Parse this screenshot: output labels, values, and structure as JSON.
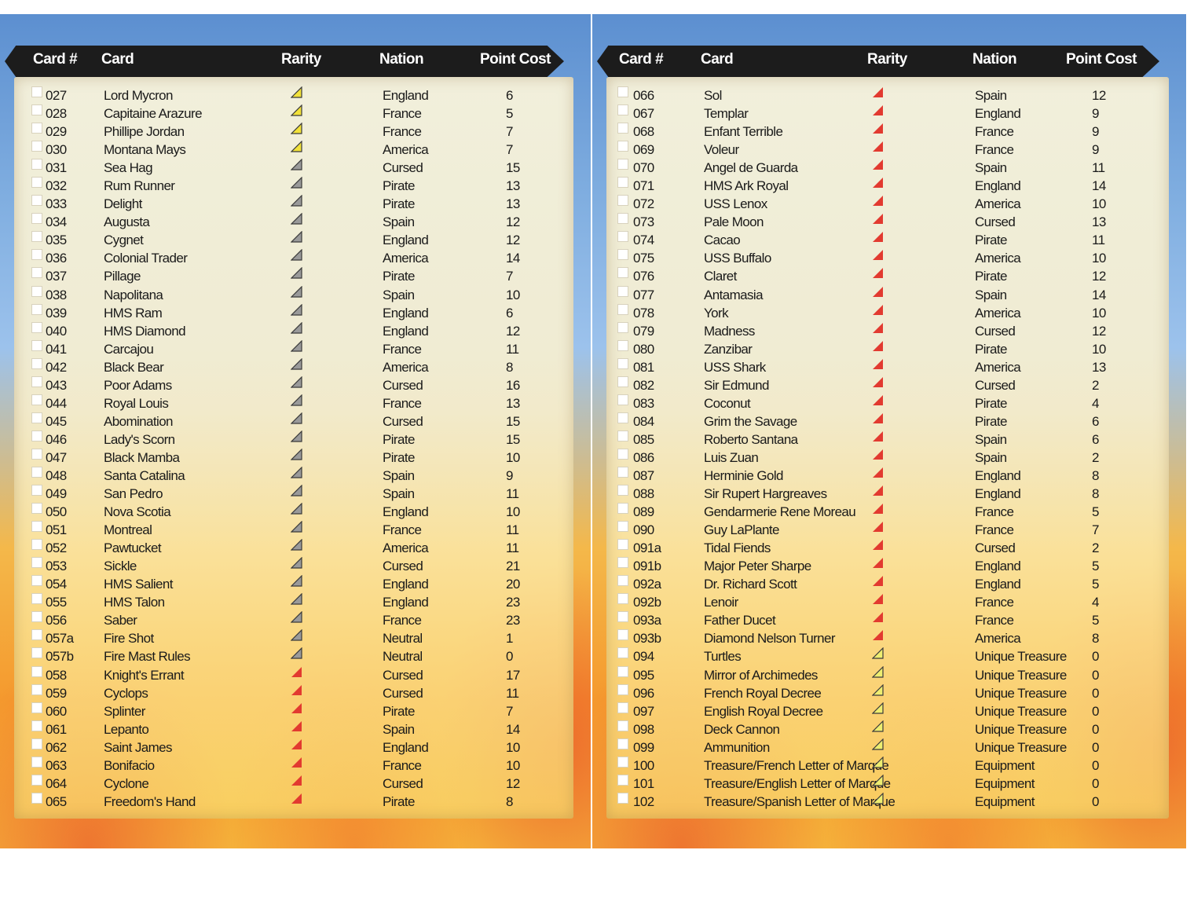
{
  "colors": {
    "rare": "#e23a30",
    "common": "#9a9a9a",
    "uncommon": "#f2e23a",
    "treasure": "#eeee70"
  },
  "headers": {
    "card_num": "Card #",
    "card": "Card",
    "rarity": "Rarity",
    "nation": "Nation",
    "point_cost": "Point Cost"
  },
  "left": {
    "rows": [
      {
        "num": "027",
        "name": "Lord Mycron",
        "rarity": "uncommon",
        "nation": "England",
        "cost": "6"
      },
      {
        "num": "028",
        "name": "Capitaine Arazure",
        "rarity": "uncommon",
        "nation": "France",
        "cost": "5"
      },
      {
        "num": "029",
        "name": "Phillipe Jordan",
        "rarity": "uncommon",
        "nation": "France",
        "cost": "7"
      },
      {
        "num": "030",
        "name": "Montana Mays",
        "rarity": "uncommon",
        "nation": "America",
        "cost": "7"
      },
      {
        "num": "031",
        "name": "Sea Hag",
        "rarity": "common",
        "nation": "Cursed",
        "cost": "15"
      },
      {
        "num": "032",
        "name": "Rum Runner",
        "rarity": "common",
        "nation": "Pirate",
        "cost": "13"
      },
      {
        "num": "033",
        "name": "Delight",
        "rarity": "common",
        "nation": "Pirate",
        "cost": "13"
      },
      {
        "num": "034",
        "name": "Augusta",
        "rarity": "common",
        "nation": "Spain",
        "cost": "12"
      },
      {
        "num": "035",
        "name": "Cygnet",
        "rarity": "common",
        "nation": "England",
        "cost": "12"
      },
      {
        "num": "036",
        "name": "Colonial Trader",
        "rarity": "common",
        "nation": "America",
        "cost": "14"
      },
      {
        "num": "037",
        "name": "Pillage",
        "rarity": "common",
        "nation": "Pirate",
        "cost": "7"
      },
      {
        "num": "038",
        "name": "Napolitana",
        "rarity": "common",
        "nation": "Spain",
        "cost": "10"
      },
      {
        "num": "039",
        "name": "HMS Ram",
        "rarity": "common",
        "nation": "England",
        "cost": "6"
      },
      {
        "num": "040",
        "name": "HMS Diamond",
        "rarity": "common",
        "nation": "England",
        "cost": "12"
      },
      {
        "num": "041",
        "name": "Carcajou",
        "rarity": "common",
        "nation": "France",
        "cost": "11"
      },
      {
        "num": "042",
        "name": "Black Bear",
        "rarity": "common",
        "nation": "America",
        "cost": "8"
      },
      {
        "num": "043",
        "name": "Poor Adams",
        "rarity": "common",
        "nation": "Cursed",
        "cost": "16"
      },
      {
        "num": "044",
        "name": "Royal Louis",
        "rarity": "common",
        "nation": "France",
        "cost": "13"
      },
      {
        "num": "045",
        "name": "Abomination",
        "rarity": "common",
        "nation": "Cursed",
        "cost": "15"
      },
      {
        "num": "046",
        "name": "Lady's Scorn",
        "rarity": "common",
        "nation": "Pirate",
        "cost": "15"
      },
      {
        "num": "047",
        "name": "Black Mamba",
        "rarity": "common",
        "nation": "Pirate",
        "cost": "10"
      },
      {
        "num": "048",
        "name": "Santa Catalina",
        "rarity": "common",
        "nation": "Spain",
        "cost": "9"
      },
      {
        "num": "049",
        "name": "San Pedro",
        "rarity": "common",
        "nation": "Spain",
        "cost": "11"
      },
      {
        "num": "050",
        "name": "Nova Scotia",
        "rarity": "common",
        "nation": "England",
        "cost": "10"
      },
      {
        "num": "051",
        "name": "Montreal",
        "rarity": "common",
        "nation": "France",
        "cost": "11"
      },
      {
        "num": "052",
        "name": "Pawtucket",
        "rarity": "common",
        "nation": "America",
        "cost": "11"
      },
      {
        "num": "053",
        "name": "Sickle",
        "rarity": "common",
        "nation": "Cursed",
        "cost": "21"
      },
      {
        "num": "054",
        "name": "HMS Salient",
        "rarity": "common",
        "nation": "England",
        "cost": "20"
      },
      {
        "num": "055",
        "name": "HMS Talon",
        "rarity": "common",
        "nation": "England",
        "cost": "23"
      },
      {
        "num": "056",
        "name": "Saber",
        "rarity": "common",
        "nation": "France",
        "cost": "23"
      },
      {
        "num": "057a",
        "name": "Fire Shot",
        "rarity": "common",
        "nation": "Neutral",
        "cost": "1"
      },
      {
        "num": "057b",
        "name": "Fire Mast Rules",
        "rarity": "common",
        "nation": "Neutral",
        "cost": "0"
      },
      {
        "num": "058",
        "name": "Knight's Errant",
        "rarity": "rare",
        "nation": "Cursed",
        "cost": "17"
      },
      {
        "num": "059",
        "name": "Cyclops",
        "rarity": "rare",
        "nation": "Cursed",
        "cost": "11"
      },
      {
        "num": "060",
        "name": "Splinter",
        "rarity": "rare",
        "nation": "Pirate",
        "cost": "7"
      },
      {
        "num": "061",
        "name": "Lepanto",
        "rarity": "rare",
        "nation": "Spain",
        "cost": "14"
      },
      {
        "num": "062",
        "name": "Saint James",
        "rarity": "rare",
        "nation": "England",
        "cost": "10"
      },
      {
        "num": "063",
        "name": "Bonifacio",
        "rarity": "rare",
        "nation": "France",
        "cost": "10"
      },
      {
        "num": "064",
        "name": "Cyclone",
        "rarity": "rare",
        "nation": "Cursed",
        "cost": "12"
      },
      {
        "num": "065",
        "name": "Freedom's Hand",
        "rarity": "rare",
        "nation": "Pirate",
        "cost": "8"
      }
    ]
  },
  "right": {
    "rows": [
      {
        "num": "066",
        "name": "Sol",
        "rarity": "rare",
        "nation": "Spain",
        "cost": "12"
      },
      {
        "num": "067",
        "name": "Templar",
        "rarity": "rare",
        "nation": "England",
        "cost": "9"
      },
      {
        "num": "068",
        "name": "Enfant Terrible",
        "rarity": "rare",
        "nation": "France",
        "cost": "9"
      },
      {
        "num": "069",
        "name": "Voleur",
        "rarity": "rare",
        "nation": "France",
        "cost": "9"
      },
      {
        "num": "070",
        "name": "Angel de Guarda",
        "rarity": "rare",
        "nation": "Spain",
        "cost": "11"
      },
      {
        "num": "071",
        "name": "HMS Ark Royal",
        "rarity": "rare",
        "nation": "England",
        "cost": "14"
      },
      {
        "num": "072",
        "name": "USS Lenox",
        "rarity": "rare",
        "nation": "America",
        "cost": "10"
      },
      {
        "num": "073",
        "name": "Pale Moon",
        "rarity": "rare",
        "nation": "Cursed",
        "cost": "13"
      },
      {
        "num": "074",
        "name": "Cacao",
        "rarity": "rare",
        "nation": "Pirate",
        "cost": "11"
      },
      {
        "num": "075",
        "name": "USS Buffalo",
        "rarity": "rare",
        "nation": "America",
        "cost": "10"
      },
      {
        "num": "076",
        "name": "Claret",
        "rarity": "rare",
        "nation": "Pirate",
        "cost": "12"
      },
      {
        "num": "077",
        "name": "Antamasia",
        "rarity": "rare",
        "nation": "Spain",
        "cost": "14"
      },
      {
        "num": "078",
        "name": "York",
        "rarity": "rare",
        "nation": "America",
        "cost": "10"
      },
      {
        "num": "079",
        "name": "Madness",
        "rarity": "rare",
        "nation": "Cursed",
        "cost": "12"
      },
      {
        "num": "080",
        "name": "Zanzibar",
        "rarity": "rare",
        "nation": "Pirate",
        "cost": "10"
      },
      {
        "num": "081",
        "name": "USS Shark",
        "rarity": "rare",
        "nation": "America",
        "cost": "13"
      },
      {
        "num": "082",
        "name": "Sir Edmund",
        "rarity": "rare",
        "nation": "Cursed",
        "cost": "2"
      },
      {
        "num": "083",
        "name": "Coconut",
        "rarity": "rare",
        "nation": "Pirate",
        "cost": "4"
      },
      {
        "num": "084",
        "name": "Grim the Savage",
        "rarity": "rare",
        "nation": "Pirate",
        "cost": "6"
      },
      {
        "num": "085",
        "name": "Roberto Santana",
        "rarity": "rare",
        "nation": "Spain",
        "cost": "6"
      },
      {
        "num": "086",
        "name": "Luis Zuan",
        "rarity": "rare",
        "nation": "Spain",
        "cost": "2"
      },
      {
        "num": "087",
        "name": "Herminie Gold",
        "rarity": "rare",
        "nation": "England",
        "cost": "8"
      },
      {
        "num": "088",
        "name": "Sir Rupert Hargreaves",
        "rarity": "rare",
        "nation": "England",
        "cost": "8"
      },
      {
        "num": "089",
        "name": "Gendarmerie Rene Moreau",
        "rarity": "rare",
        "nation": "France",
        "cost": "5"
      },
      {
        "num": "090",
        "name": "Guy LaPlante",
        "rarity": "rare",
        "nation": "France",
        "cost": "7"
      },
      {
        "num": "091a",
        "name": "Tidal Fiends",
        "rarity": "rare",
        "nation": "Cursed",
        "cost": "2"
      },
      {
        "num": "091b",
        "name": "Major Peter Sharpe",
        "rarity": "rare",
        "nation": "England",
        "cost": "5"
      },
      {
        "num": "092a",
        "name": "Dr. Richard Scott",
        "rarity": "rare",
        "nation": "England",
        "cost": "5"
      },
      {
        "num": "092b",
        "name": "Lenoir",
        "rarity": "rare",
        "nation": "France",
        "cost": "4"
      },
      {
        "num": "093a",
        "name": "Father Ducet",
        "rarity": "rare",
        "nation": "France",
        "cost": "5"
      },
      {
        "num": "093b",
        "name": "Diamond Nelson Turner",
        "rarity": "rare",
        "nation": "America",
        "cost": "8"
      },
      {
        "num": "094",
        "name": "Turtles",
        "rarity": "treasure",
        "nation": "Unique Treasure",
        "cost": "0"
      },
      {
        "num": "095",
        "name": "Mirror of Archimedes",
        "rarity": "treasure",
        "nation": "Unique Treasure",
        "cost": "0"
      },
      {
        "num": "096",
        "name": "French Royal Decree",
        "rarity": "treasure",
        "nation": "Unique Treasure",
        "cost": "0"
      },
      {
        "num": "097",
        "name": "English Royal Decree",
        "rarity": "treasure",
        "nation": "Unique Treasure",
        "cost": "0"
      },
      {
        "num": "098",
        "name": "Deck Cannon",
        "rarity": "treasure",
        "nation": "Unique Treasure",
        "cost": "0"
      },
      {
        "num": "099",
        "name": "Ammunition",
        "rarity": "treasure",
        "nation": "Unique Treasure",
        "cost": "0"
      },
      {
        "num": "100",
        "name": "Treasure/French Letter of Marque",
        "rarity": "treasure",
        "nation": "Equipment",
        "cost": "0"
      },
      {
        "num": "101",
        "name": "Treasure/English Letter of Marque",
        "rarity": "treasure",
        "nation": "Equipment",
        "cost": "0"
      },
      {
        "num": "102",
        "name": "Treasure/Spanish Letter of Marque",
        "rarity": "treasure",
        "nation": "Equipment",
        "cost": "0"
      }
    ]
  }
}
